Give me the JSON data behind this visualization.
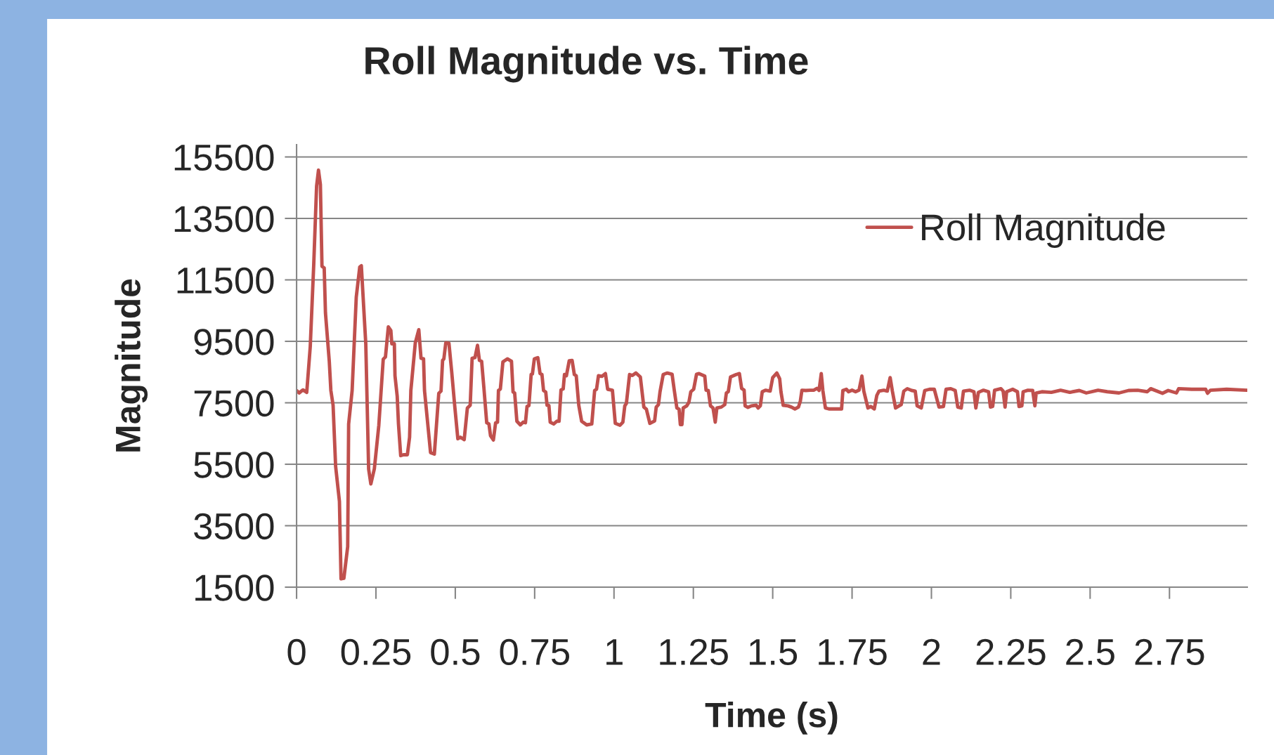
{
  "chart_data": {
    "type": "line",
    "title": "Roll Magnitude vs. Time",
    "xlabel": "Time (s)",
    "ylabel": "Magnitude",
    "xlim": [
      0,
      2.995
    ],
    "xticks": [
      0,
      0.25,
      0.5,
      0.75,
      1,
      1.25,
      1.5,
      1.75,
      2,
      2.25,
      2.5,
      2.75
    ],
    "ylim": [
      1500,
      15900
    ],
    "yticks": [
      1500,
      3500,
      5500,
      7500,
      9500,
      11500,
      13500,
      15500
    ],
    "grid": "y",
    "legend": "top right",
    "marker": "none",
    "line_style": "solid",
    "series": [
      {
        "name": "Roll Magnitude",
        "color": "#c0504d",
        "x": [
          0,
          0.008,
          0.02,
          0.032,
          0.043,
          0.054,
          0.063,
          0.069,
          0.075,
          0.08,
          0.087,
          0.091,
          0.103,
          0.108,
          0.115,
          0.123,
          0.135,
          0.14,
          0.149,
          0.161,
          0.164,
          0.175,
          0.188,
          0.199,
          0.204,
          0.218,
          0.227,
          0.234,
          0.245,
          0.259,
          0.273,
          0.28,
          0.289,
          0.297,
          0.3,
          0.308,
          0.31,
          0.317,
          0.321,
          0.328,
          0.337,
          0.349,
          0.356,
          0.36,
          0.374,
          0.385,
          0.392,
          0.4,
          0.403,
          0.422,
          0.434,
          0.448,
          0.455,
          0.46,
          0.464,
          0.47,
          0.48,
          0.489,
          0.498,
          0.508,
          0.516,
          0.528,
          0.538,
          0.547,
          0.553,
          0.562,
          0.57,
          0.576,
          0.583,
          0.59,
          0.599,
          0.606,
          0.611,
          0.62,
          0.627,
          0.633,
          0.636,
          0.642,
          0.65,
          0.664,
          0.677,
          0.682,
          0.687,
          0.694,
          0.705,
          0.714,
          0.721,
          0.726,
          0.732,
          0.739,
          0.743,
          0.749,
          0.76,
          0.767,
          0.773,
          0.778,
          0.785,
          0.789,
          0.795,
          0.799,
          0.81,
          0.82,
          0.827,
          0.833,
          0.84,
          0.844,
          0.85,
          0.859,
          0.868,
          0.875,
          0.881,
          0.889,
          0.898,
          0.914,
          0.93,
          0.939,
          0.945,
          0.951,
          0.962,
          0.973,
          0.98,
          0.995,
          1.004,
          1.019,
          1.028,
          1.034,
          1.039,
          1.049,
          1.058,
          1.069,
          1.083,
          1.094,
          1.102,
          1.113,
          1.128,
          1.133,
          1.14,
          1.145,
          1.155,
          1.168,
          1.183,
          1.19,
          1.198,
          1.205,
          1.209,
          1.214,
          1.218,
          1.229,
          1.236,
          1.242,
          1.251,
          1.26,
          1.268,
          1.286,
          1.29,
          1.297,
          1.304,
          1.312,
          1.319,
          1.324,
          1.338,
          1.349,
          1.354,
          1.36,
          1.367,
          1.385,
          1.395,
          1.402,
          1.41,
          1.413,
          1.422,
          1.433,
          1.448,
          1.454,
          1.461,
          1.467,
          1.478,
          1.492,
          1.5,
          1.513,
          1.522,
          1.526,
          1.533,
          1.548,
          1.559,
          1.57,
          1.581,
          1.587,
          1.592,
          1.604,
          1.618,
          1.629,
          1.64,
          1.646,
          1.653,
          1.658,
          1.666,
          1.677,
          1.717,
          1.721,
          1.732,
          1.739,
          1.75,
          1.761,
          1.772,
          1.781,
          1.787,
          1.8,
          1.809,
          1.82,
          1.828,
          1.835,
          1.85,
          1.861,
          1.87,
          1.877,
          1.887,
          1.898,
          1.905,
          1.913,
          1.924,
          1.938,
          1.949,
          1.955,
          1.968,
          1.979,
          1.994,
          2.009,
          2.024,
          2.038,
          2.046,
          2.061,
          2.075,
          2.083,
          2.094,
          2.101,
          2.12,
          2.134,
          2.14,
          2.148,
          2.164,
          2.18,
          2.186,
          2.193,
          2.199,
          2.219,
          2.226,
          2.232,
          2.237,
          2.256,
          2.271,
          2.276,
          2.285,
          2.289,
          2.304,
          2.319,
          2.326,
          2.33,
          2.348,
          2.378,
          2.407,
          2.436,
          2.466,
          2.488,
          2.525,
          2.554,
          2.591,
          2.621,
          2.65,
          2.68,
          2.691,
          2.728,
          2.746,
          2.772,
          2.779,
          2.82,
          2.864,
          2.87,
          2.879,
          2.93,
          2.993
        ],
        "values": [
          7900,
          7820,
          7920,
          7840,
          9320,
          11990,
          14550,
          15070,
          14600,
          11940,
          11890,
          10420,
          8850,
          7900,
          7420,
          5430,
          4290,
          1770,
          1790,
          2820,
          6810,
          7900,
          10940,
          11920,
          11960,
          9420,
          5340,
          4860,
          5350,
          6760,
          8920,
          8990,
          9970,
          9850,
          9420,
          9420,
          8380,
          7710,
          6810,
          5780,
          5810,
          5810,
          6380,
          7900,
          9450,
          9880,
          8950,
          8930,
          7900,
          5880,
          5830,
          7810,
          7880,
          8880,
          8930,
          9450,
          9440,
          8470,
          7420,
          6330,
          6380,
          6300,
          7330,
          7420,
          8950,
          8970,
          9370,
          8880,
          8850,
          8000,
          6850,
          6810,
          6430,
          6290,
          6850,
          6870,
          7900,
          7950,
          8830,
          8930,
          8850,
          7850,
          7820,
          6900,
          6780,
          6870,
          6850,
          7380,
          7410,
          8420,
          8440,
          8930,
          8970,
          8450,
          8420,
          7900,
          7850,
          7420,
          7410,
          6870,
          6810,
          6900,
          6900,
          7920,
          7950,
          8420,
          8380,
          8870,
          8880,
          8420,
          8380,
          7420,
          6900,
          6780,
          6810,
          7900,
          7940,
          8380,
          8360,
          8450,
          7940,
          7910,
          6830,
          6770,
          6870,
          7400,
          7480,
          8420,
          8390,
          8470,
          8340,
          7360,
          7290,
          6830,
          6910,
          7360,
          7440,
          7860,
          8420,
          8470,
          8430,
          7900,
          7330,
          7290,
          6790,
          6790,
          7330,
          7400,
          7520,
          7860,
          7940,
          8430,
          8450,
          8370,
          7910,
          7900,
          7400,
          7330,
          6870,
          7330,
          7360,
          7440,
          7820,
          7860,
          8340,
          8420,
          8450,
          7970,
          7910,
          7400,
          7350,
          7400,
          7420,
          7330,
          7400,
          7860,
          7910,
          7880,
          8320,
          8470,
          8280,
          7860,
          7420,
          7400,
          7360,
          7300,
          7360,
          7550,
          7910,
          7900,
          7910,
          7910,
          7970,
          7900,
          8450,
          7900,
          7330,
          7300,
          7300,
          7900,
          7940,
          7860,
          7910,
          7860,
          7910,
          8370,
          7880,
          7330,
          7380,
          7300,
          7740,
          7880,
          7910,
          7880,
          8320,
          7880,
          7330,
          7400,
          7440,
          7880,
          7960,
          7900,
          7880,
          7400,
          7330,
          7900,
          7940,
          7940,
          7360,
          7380,
          7940,
          7960,
          7900,
          7360,
          7330,
          7880,
          7910,
          7860,
          7330,
          7840,
          7910,
          7860,
          7360,
          7380,
          7910,
          7960,
          7880,
          7360,
          7860,
          7940,
          7860,
          7380,
          7400,
          7860,
          7910,
          7900,
          7400,
          7820,
          7860,
          7840,
          7910,
          7840,
          7900,
          7820,
          7910,
          7860,
          7820,
          7900,
          7910,
          7860,
          7960,
          7810,
          7900,
          7820,
          7960,
          7940,
          7940,
          7810,
          7910,
          7940,
          7910
        ]
      }
    ]
  }
}
